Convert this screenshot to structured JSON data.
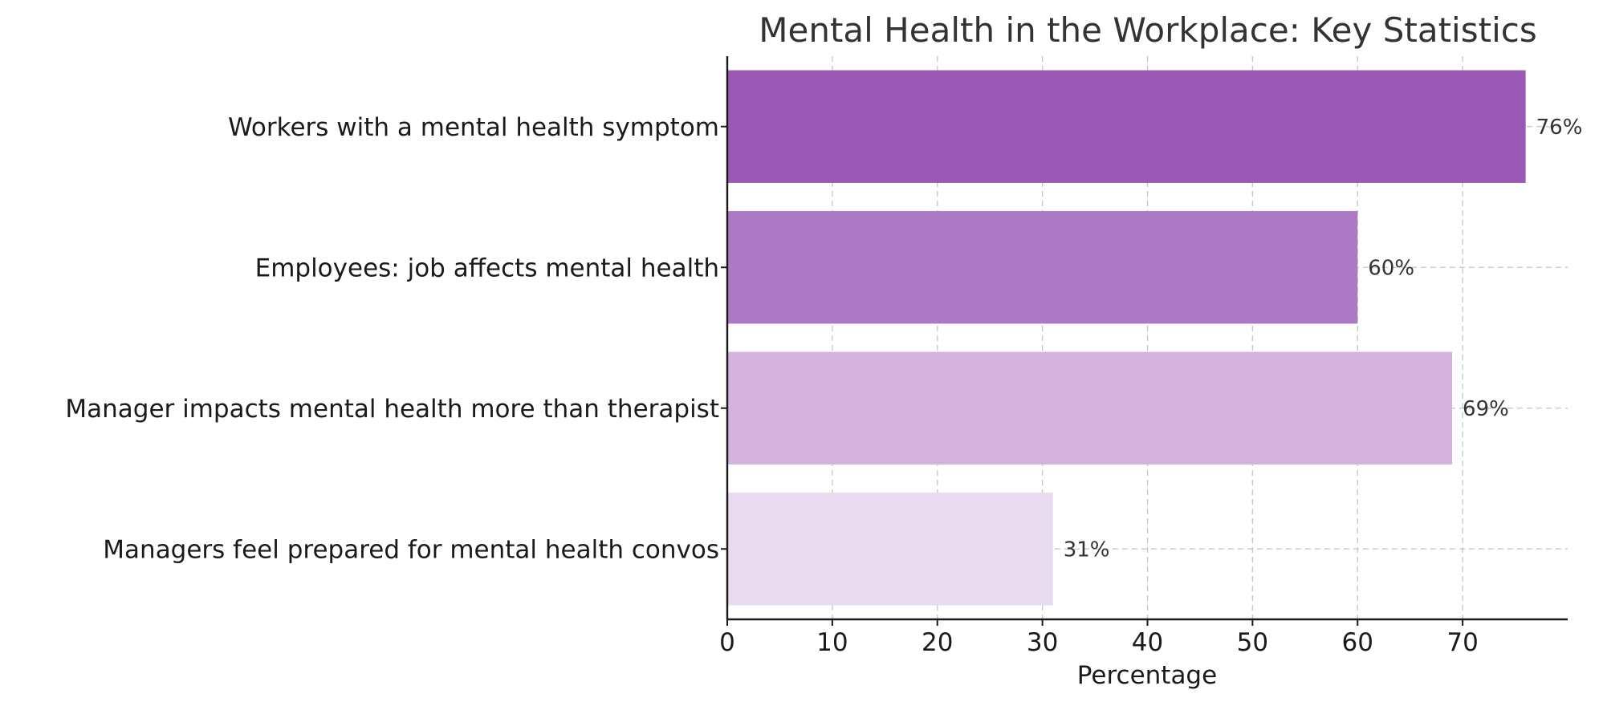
{
  "chart_data": {
    "type": "bar",
    "orientation": "horizontal",
    "title": "Mental Health in the Workplace: Key Statistics",
    "xlabel": "Percentage",
    "ylabel": "",
    "categories": [
      "Workers with a mental health symptom",
      "Employees: job affects mental health",
      "Manager impacts mental health more than therapist",
      "Managers feel prepared for mental health convos"
    ],
    "values": [
      76,
      60,
      69,
      31
    ],
    "data_labels": [
      "76%",
      "60%",
      "69%",
      "31%"
    ],
    "bar_colors": [
      "#9b59b6",
      "#ac7ac4",
      "#d3b3dd",
      "#e8dbef"
    ],
    "xlim": [
      0,
      80
    ],
    "xticks": [
      0,
      10,
      20,
      30,
      40,
      50,
      60,
      70
    ],
    "grid": true,
    "legend": "none"
  }
}
